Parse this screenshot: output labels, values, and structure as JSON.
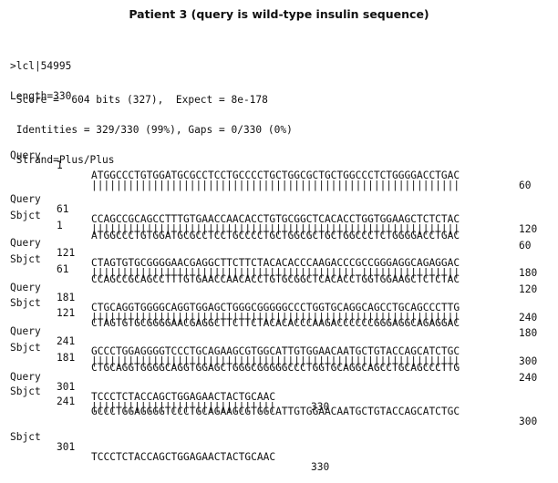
{
  "title": "Patient 3 (query is wild-type insulin sequence)",
  "header": {
    "id_line": ">lcl|54995",
    "length_line": "Length=330",
    "score_line": " Score =  604 bits (327),  Expect = 8e-178",
    "identities_line": " Identities = 329/330 (99%), Gaps = 0/330 (0%)",
    "strand_line": " Strand=Plus/Plus"
  },
  "blocks": [
    {
      "query_label": "Query",
      "query_start": "1",
      "query_seq": "ATGGCCCTGTGGATGCGCCTCCTGCCCCTGCTGGCGCTGCTGGCCCTCTGGGGACCTGAC",
      "query_end": "60",
      "match": "||||||||||||||||||||||||||||||||||||||||||||||||||||||||||||",
      "sbjct_label": "Sbjct",
      "sbjct_start": "1",
      "sbjct_seq": "ATGGCCCTGTGGATGCGCCTCCTGCCCCTGCTGGCGCTGCTGGCCCTCTGGGGACCTGAC",
      "sbjct_end": "60"
    },
    {
      "query_label": "Query",
      "query_start": "61",
      "query_seq": "CCAGCCGCAGCCTTTGTGAACCAACACCTGTGCGGCTCACACCTGGTGGAAGCTCTCTAC",
      "query_end": "120",
      "match": "||||||||||||||||||||||||||||||||||||||||||||||||||||||||||||",
      "sbjct_label": "Sbjct",
      "sbjct_start": "61",
      "sbjct_seq": "CCAGCCGCAGCCTTTGTGAACCAACACCTGTGCGGCTCACACCTGGTGGAAGCTCTCTAC",
      "sbjct_end": "120"
    },
    {
      "query_label": "Query",
      "query_start": "121",
      "query_seq": "CTAGTGTGCGGGGAACGAGGCTTCTTCTACACACCCAAGACCCGCCGGGAGGCAGAGGAC",
      "query_end": "180",
      "match": "||||||||||||||||||||||||||||||||||||||||||| ||||||||||||||||",
      "sbjct_label": "Sbjct",
      "sbjct_start": "121",
      "sbjct_seq": "CTAGTGTGCGGGGAACGAGGCTTCTTCTACACACCCAAGACCCCCCGGGAGGCAGAGGAC",
      "sbjct_end": "180"
    },
    {
      "query_label": "Query",
      "query_start": "181",
      "query_seq": "CTGCAGGTGGGGCAGGTGGAGCTGGGCGGGGGCCCTGGTGCAGGCAGCCTGCAGCCCTTG",
      "query_end": "240",
      "match": "||||||||||||||||||||||||||||||||||||||||||||||||||||||||||||",
      "sbjct_label": "Sbjct",
      "sbjct_start": "181",
      "sbjct_seq": "CTGCAGGTGGGGCAGGTGGAGCTGGGCGGGGGCCCTGGTGCAGGCAGCCTGCAGCCCTTG",
      "sbjct_end": "240"
    },
    {
      "query_label": "Query",
      "query_start": "241",
      "query_seq": "GCCCTGGAGGGGTCCCTGCAGAAGCGTGGCATTGTGGAACAATGCTGTACCAGCATCTGC",
      "query_end": "300",
      "match": "||||||||||||||||||||||||||||||||||||||||||||||||||||||||||||",
      "sbjct_label": "Sbjct",
      "sbjct_start": "241",
      "sbjct_seq": "GCCCTGGAGGGGTCCCTGCAGAAGCGTGGCATTGTGGAACAATGCTGTACCAGCATCTGC",
      "sbjct_end": "300"
    },
    {
      "query_label": "Query",
      "query_start": "301",
      "query_seq": "TCCCTCTACCAGCTGGAGAACTACTGCAAC",
      "query_end": "330",
      "match": "||||||||||||||||||||||||||||||",
      "sbjct_label": "Sbjct",
      "sbjct_start": "301",
      "sbjct_seq": "TCCCTCTACCAGCTGGAGAACTACTGCAAC",
      "sbjct_end": "330"
    }
  ]
}
